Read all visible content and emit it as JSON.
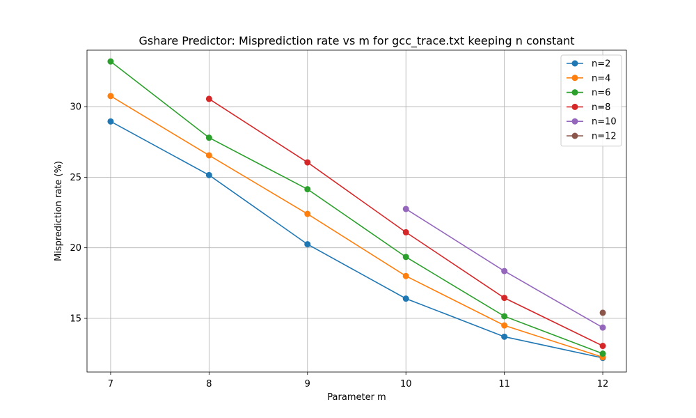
{
  "chart_data": {
    "type": "line",
    "title": "Gshare Predictor: Misprediction rate vs m for gcc_trace.txt keeping n constant",
    "xlabel": "Parameter m",
    "ylabel": "Misprediction rate (%)",
    "x_ticks": [
      7,
      8,
      9,
      10,
      11,
      12
    ],
    "y_ticks": [
      15,
      20,
      25,
      30
    ],
    "xlim": [
      6.76,
      12.24
    ],
    "ylim": [
      11.2,
      34.0
    ],
    "grid": true,
    "legend_position": "top-right",
    "series": [
      {
        "name": "n=2",
        "color": "#1f77b4",
        "x": [
          7,
          8,
          9,
          10,
          11,
          12
        ],
        "y": [
          28.95,
          25.15,
          20.25,
          16.4,
          13.7,
          12.2
        ]
      },
      {
        "name": "n=4",
        "color": "#ff7f0e",
        "x": [
          7,
          8,
          9,
          10,
          11,
          12
        ],
        "y": [
          30.75,
          26.55,
          22.4,
          18.0,
          14.5,
          12.25
        ]
      },
      {
        "name": "n=6",
        "color": "#2ca02c",
        "x": [
          7,
          8,
          9,
          10,
          11,
          12
        ],
        "y": [
          33.2,
          27.8,
          24.15,
          19.35,
          15.15,
          12.5
        ]
      },
      {
        "name": "n=8",
        "color": "#d62728",
        "x": [
          8,
          9,
          10,
          11,
          12
        ],
        "y": [
          30.55,
          26.05,
          21.1,
          16.45,
          13.05
        ]
      },
      {
        "name": "n=10",
        "color": "#9467bd",
        "x": [
          10,
          11,
          12
        ],
        "y": [
          22.75,
          18.35,
          14.35
        ]
      },
      {
        "name": "n=12",
        "color": "#8c564b",
        "x": [
          12
        ],
        "y": [
          15.4
        ]
      }
    ]
  }
}
